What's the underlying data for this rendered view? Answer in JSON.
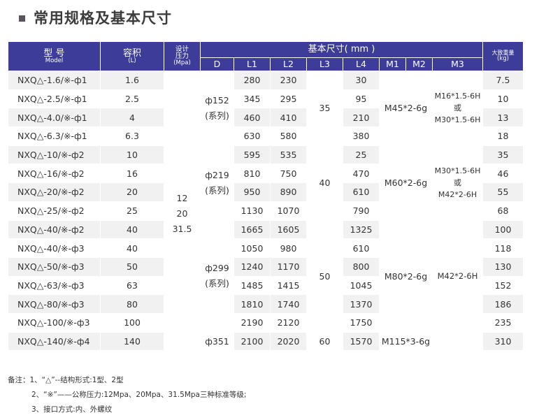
{
  "title": "常用规格及基本尺寸",
  "header": {
    "model": "型  号",
    "model_sub": "Model",
    "volume": "容积",
    "volume_sub": "(L)",
    "pressure": "设计压力",
    "pressure_sub": "(Mpa)",
    "basic": "基本尺寸( mm )",
    "weight": "大致重量",
    "weight_sub": "(kg)",
    "cols": [
      "D",
      "L1",
      "L2",
      "L3",
      "L4",
      "M1",
      "M2",
      "M3"
    ]
  },
  "rows": [
    {
      "model": "NXQ△-1.6/※-ф1",
      "vol": "1.6",
      "L1": "280",
      "L2": "230",
      "L4": "30",
      "kg": "7.5"
    },
    {
      "model": "NXQ△-2.5/※-ф1",
      "vol": "2.5",
      "L1": "345",
      "L2": "295",
      "L4": "95",
      "kg": "10"
    },
    {
      "model": "NXQ△-4.0/※-ф1",
      "vol": "4",
      "L1": "460",
      "L2": "410",
      "L4": "210",
      "kg": "13"
    },
    {
      "model": "NXQ△-6.3/※-ф1",
      "vol": "6.3",
      "L1": "630",
      "L2": "580",
      "L4": "380",
      "kg": "18"
    },
    {
      "model": "NXQ△-10/※-ф2",
      "vol": "10",
      "L1": "595",
      "L2": "535",
      "L4": "25",
      "kg": "35"
    },
    {
      "model": "NXQ△-16/※-ф2",
      "vol": "16",
      "L1": "810",
      "L2": "750",
      "L4": "470",
      "kg": "46"
    },
    {
      "model": "NXQ△-20/※-ф2",
      "vol": "20",
      "L1": "950",
      "L2": "890",
      "L4": "610",
      "kg": "55"
    },
    {
      "model": "NXQ△-25/※-ф2",
      "vol": "25",
      "L1": "1130",
      "L2": "1070",
      "L4": "790",
      "kg": "68"
    },
    {
      "model": "NXQ△-40/※-ф2",
      "vol": "40",
      "L1": "1665",
      "L2": "1605",
      "L4": "1325",
      "kg": "100"
    },
    {
      "model": "NXQ△-40/※-ф3",
      "vol": "40",
      "L1": "1050",
      "L2": "980",
      "L4": "610",
      "kg": "118"
    },
    {
      "model": "NXQ△-50/※-ф3",
      "vol": "50",
      "L1": "1240",
      "L2": "1170",
      "L4": "800",
      "kg": "130"
    },
    {
      "model": "NXQ△-63/※-ф3",
      "vol": "63",
      "L1": "1485",
      "L2": "1415",
      "L4": "1045",
      "kg": "152"
    },
    {
      "model": "NXQ△-80/※-ф3",
      "vol": "80",
      "L1": "1810",
      "L2": "1740",
      "L4": "1370",
      "kg": "186"
    },
    {
      "model": "NXQ△-100/※-ф3",
      "vol": "100",
      "L1": "2190",
      "L2": "2120",
      "L4": "1750",
      "kg": "235"
    },
    {
      "model": "NXQ△-140/※-ф4",
      "vol": "140",
      "L1": "2100",
      "L2": "2020",
      "L4": "1570",
      "kg": "310"
    }
  ],
  "merged": {
    "pressure": [
      "12",
      "20",
      "31.5"
    ],
    "D1": [
      "ф152",
      "(系列)"
    ],
    "D2": [
      "ф219",
      "(系列)"
    ],
    "D3": [
      "ф299",
      "(系列)"
    ],
    "D4": "ф351",
    "L3_1": "35",
    "L3_2": "40",
    "L3_3": "50",
    "L3_4": "60",
    "M12_1": "M45*2-6g",
    "M12_2": "M60*2-6g",
    "M12_3": "M80*2-6g",
    "M12_4": "M115*3-6g",
    "M3_1": [
      "M16*1.5-6H",
      "或",
      "M30*1.5-6H"
    ],
    "M3_2": [
      "M30*1.5-6H",
      "或",
      "M42*2-6H"
    ],
    "M3_3": "M42*2-6H"
  },
  "notes": [
    "备注：1、“△”--结构形式:1型、2型",
    "2、“※”——公称压力:12Mpa、20Mpa、31.5Mpa三种标准等级;",
    "3、接口方式:内、外螺纹"
  ]
}
